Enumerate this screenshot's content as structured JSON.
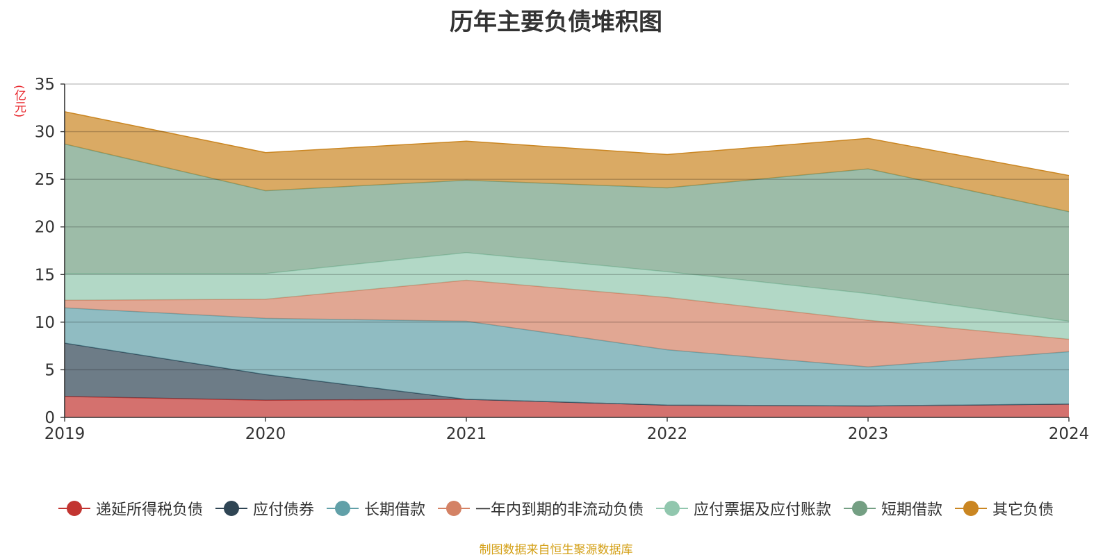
{
  "chart_data": {
    "type": "area",
    "stacked": true,
    "title": "历年主要负债堆积图",
    "ylabel": "(亿元)",
    "xlabel": "",
    "x": [
      "2019",
      "2020",
      "2021",
      "2022",
      "2023",
      "2024"
    ],
    "ylim": [
      0,
      35
    ],
    "yticks": [
      0,
      5,
      10,
      15,
      20,
      25,
      30,
      35
    ],
    "grid": true,
    "legend_position": "bottom",
    "series": [
      {
        "name": "递延所得税负债",
        "color": "#c23531",
        "values": [
          2.2,
          1.8,
          1.9,
          1.3,
          1.2,
          1.4
        ]
      },
      {
        "name": "应付债券",
        "color": "#2f4554",
        "values": [
          5.6,
          2.7,
          0.0,
          0.0,
          0.0,
          0.0
        ]
      },
      {
        "name": "长期借款",
        "color": "#61a0a8",
        "values": [
          3.7,
          5.9,
          8.2,
          5.8,
          4.1,
          5.5
        ]
      },
      {
        "name": "一年内到期的非流动负债",
        "color": "#d48265",
        "values": [
          0.8,
          2.0,
          4.3,
          5.5,
          4.9,
          1.3
        ]
      },
      {
        "name": "应付票据及应付账款",
        "color": "#91c7ae",
        "values": [
          2.8,
          2.7,
          2.9,
          2.7,
          2.8,
          1.9
        ]
      },
      {
        "name": "短期借款",
        "color": "#749f83",
        "values": [
          13.6,
          8.7,
          7.6,
          8.8,
          13.1,
          11.5
        ]
      },
      {
        "name": "其它负债",
        "color": "#ca8622",
        "values": [
          3.4,
          4.0,
          4.1,
          3.5,
          3.2,
          3.8
        ]
      }
    ]
  },
  "source_note": "制图数据来自恒生聚源数据库"
}
